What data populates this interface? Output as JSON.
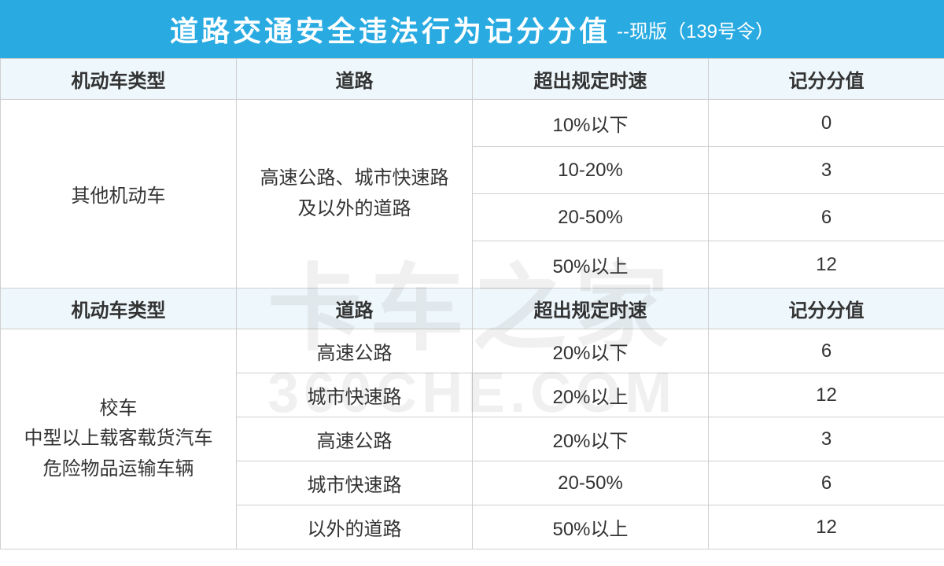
{
  "title": {
    "main": "道路交通安全违法行为记分分值",
    "sub": "--现版（139号令）"
  },
  "colors": {
    "header_bg": "#29abe2",
    "header_text": "#ffffff",
    "subheader_bg": "#eef7fb",
    "border": "#cfcfcf",
    "cell_text": "#333333",
    "bg": "#ffffff",
    "watermark": "rgba(0,0,0,0.06)"
  },
  "columns": [
    "机动车类型",
    "道路",
    "超出规定时速",
    "记分分值"
  ],
  "section1": {
    "vehicle_type": "其他机动车",
    "road": "高速公路、城市快速路\n及以外的道路",
    "rows": [
      {
        "speed": "10%以下",
        "points": "0"
      },
      {
        "speed": "10-20%",
        "points": "3"
      },
      {
        "speed": "20-50%",
        "points": "6"
      },
      {
        "speed": "50%以上",
        "points": "12"
      }
    ]
  },
  "section2": {
    "vehicle_type": "校车\n中型以上载客载货汽车\n危险物品运输车辆",
    "rows": [
      {
        "road": "高速公路",
        "speed": "20%以下",
        "points": "6"
      },
      {
        "road": "城市快速路",
        "speed": "20%以上",
        "points": "12"
      },
      {
        "road": "高速公路",
        "speed": "20%以下",
        "points": "3"
      },
      {
        "road": "城市快速路",
        "speed": "20-50%",
        "points": "6"
      },
      {
        "road": "以外的道路",
        "speed": "50%以上",
        "points": "12"
      }
    ]
  },
  "watermark": {
    "cn": "卡车之家",
    "en": "360CHE.COM"
  }
}
